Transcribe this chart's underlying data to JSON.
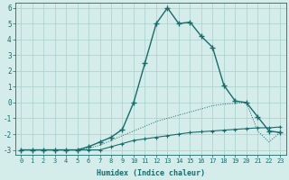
{
  "xlabel": "Humidex (Indice chaleur)",
  "xlim": [
    -0.5,
    23.5
  ],
  "ylim": [
    -3.3,
    6.3
  ],
  "yticks": [
    -3,
    -2,
    -1,
    0,
    1,
    2,
    3,
    4,
    5,
    6
  ],
  "xticks": [
    0,
    1,
    2,
    3,
    4,
    5,
    6,
    7,
    8,
    9,
    10,
    11,
    12,
    13,
    14,
    15,
    16,
    17,
    18,
    19,
    20,
    21,
    22,
    23
  ],
  "bg_color": "#d4ecea",
  "grid_color": "#aad0cc",
  "line_color": "#1a6b6b",
  "line1_x": [
    0,
    1,
    2,
    3,
    4,
    5,
    6,
    7,
    8,
    9,
    10,
    11,
    12,
    13,
    14,
    15,
    16,
    17,
    18,
    19,
    20,
    21,
    22,
    23
  ],
  "line1_y": [
    -3.0,
    -3.0,
    -3.0,
    -3.0,
    -3.0,
    -3.0,
    -2.8,
    -2.5,
    -2.2,
    -1.7,
    0.0,
    2.5,
    5.0,
    6.0,
    5.0,
    5.1,
    4.2,
    3.5,
    1.1,
    0.1,
    0.0,
    -0.9,
    -1.8,
    -1.9
  ],
  "line2_x": [
    0,
    1,
    2,
    3,
    4,
    5,
    6,
    7,
    8,
    9,
    10,
    11,
    12,
    13,
    14,
    15,
    16,
    17,
    18,
    19,
    20,
    21,
    22,
    23
  ],
  "line2_y": [
    -3.0,
    -3.0,
    -3.0,
    -3.0,
    -3.0,
    -3.0,
    -3.0,
    -3.0,
    -2.8,
    -2.6,
    -2.4,
    -2.3,
    -2.2,
    -2.1,
    -2.0,
    -1.9,
    -1.85,
    -1.8,
    -1.75,
    -1.7,
    -1.65,
    -1.6,
    -1.6,
    -1.55
  ],
  "line3_x": [
    0,
    1,
    2,
    3,
    4,
    5,
    6,
    7,
    8,
    9,
    10,
    11,
    12,
    13,
    14,
    15,
    16,
    17,
    18,
    19,
    20,
    21,
    22,
    23
  ],
  "line3_y": [
    -3.0,
    -3.0,
    -3.0,
    -3.0,
    -3.0,
    -3.0,
    -2.9,
    -2.7,
    -2.4,
    -2.1,
    -1.8,
    -1.5,
    -1.2,
    -1.0,
    -0.8,
    -0.6,
    -0.4,
    -0.2,
    -0.1,
    -0.05,
    0.0,
    -1.8,
    -2.5,
    -1.9
  ]
}
